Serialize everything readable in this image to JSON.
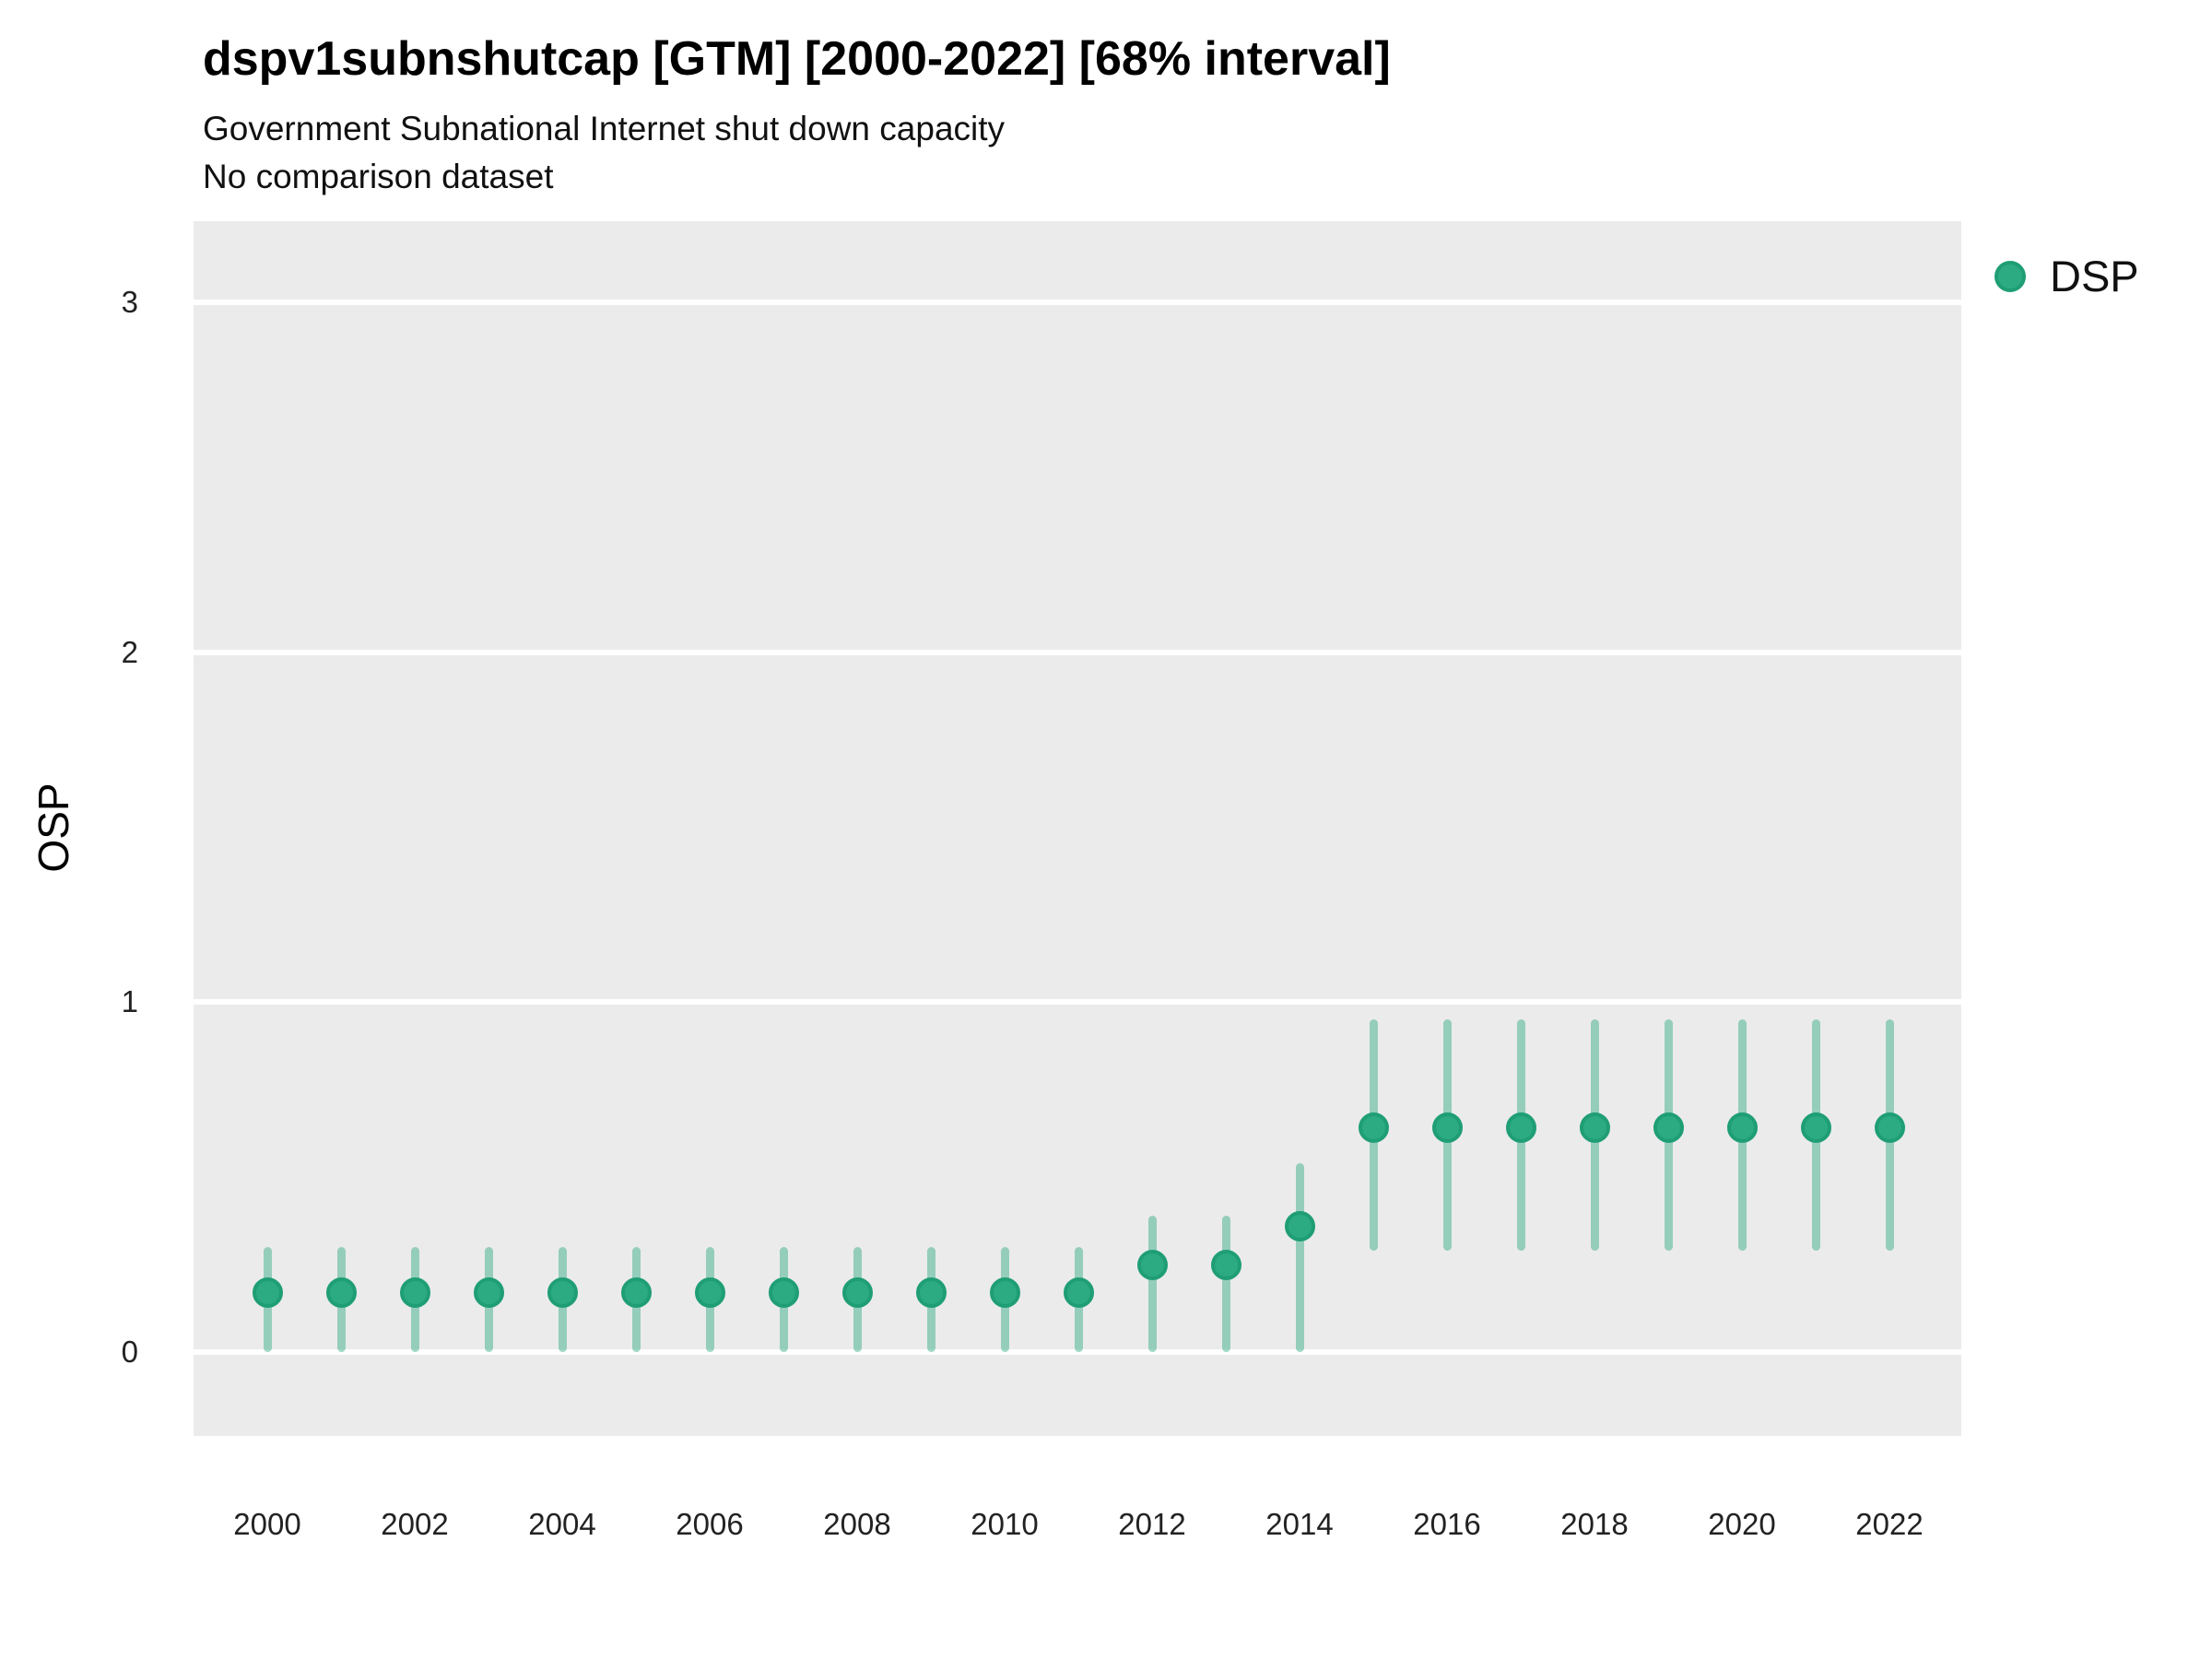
{
  "header": {
    "title": "dspv1subnshutcap [GTM] [2000-2022] [68% interval]",
    "subtitle": "Government Subnational Internet shut down capacity",
    "note": "No comparison dataset"
  },
  "legend": {
    "label": "DSP",
    "swatch_color": "#2CAB82"
  },
  "y_axis": {
    "title": "OSP",
    "tick_labels": [
      "0",
      "1",
      "2",
      "3"
    ]
  },
  "x_axis": {
    "tick_labels": [
      "2000",
      "2002",
      "2004",
      "2006",
      "2008",
      "2010",
      "2012",
      "2014",
      "2016",
      "2018",
      "2020",
      "2022"
    ]
  },
  "colors": {
    "panel_background": "#EBEBEB",
    "gridline": "#FFFFFF",
    "point_fill": "#2CAB82",
    "point_stroke": "#1F9E75",
    "interval_bar": "rgba(44,169,129,0.45)"
  },
  "chart_data": {
    "type": "pointrange",
    "title": "dspv1subnshutcap [GTM] [2000-2022] [68% interval]",
    "subtitle": "Government Subnational Internet shut down capacity",
    "note": "No comparison dataset",
    "interval": "68%",
    "xlabel": "",
    "ylabel": "OSP",
    "ylim": [
      -0.24,
      3.26
    ],
    "yticks": [
      0,
      1,
      2,
      3
    ],
    "grid": "horizontal-major-only",
    "legend_position": "right-top",
    "x": [
      2000,
      2001,
      2002,
      2003,
      2004,
      2005,
      2006,
      2007,
      2008,
      2009,
      2010,
      2011,
      2012,
      2013,
      2014,
      2015,
      2016,
      2017,
      2018,
      2019,
      2020,
      2021,
      2022
    ],
    "series": [
      {
        "name": "DSP",
        "values": [
          0.17,
          0.17,
          0.17,
          0.17,
          0.17,
          0.17,
          0.17,
          0.17,
          0.17,
          0.17,
          0.17,
          0.17,
          0.25,
          0.25,
          0.36,
          0.64,
          0.64,
          0.64,
          0.64,
          0.64,
          0.64,
          0.64,
          0.64
        ],
        "lower": [
          0.0,
          0.0,
          0.0,
          0.0,
          0.0,
          0.0,
          0.0,
          0.0,
          0.0,
          0.0,
          0.0,
          0.0,
          0.0,
          0.0,
          0.0,
          0.29,
          0.29,
          0.29,
          0.29,
          0.29,
          0.29,
          0.29,
          0.29
        ],
        "upper": [
          0.3,
          0.3,
          0.3,
          0.3,
          0.3,
          0.3,
          0.3,
          0.3,
          0.3,
          0.3,
          0.3,
          0.3,
          0.39,
          0.39,
          0.54,
          0.95,
          0.95,
          0.95,
          0.95,
          0.95,
          0.95,
          0.95,
          0.95
        ]
      }
    ]
  }
}
